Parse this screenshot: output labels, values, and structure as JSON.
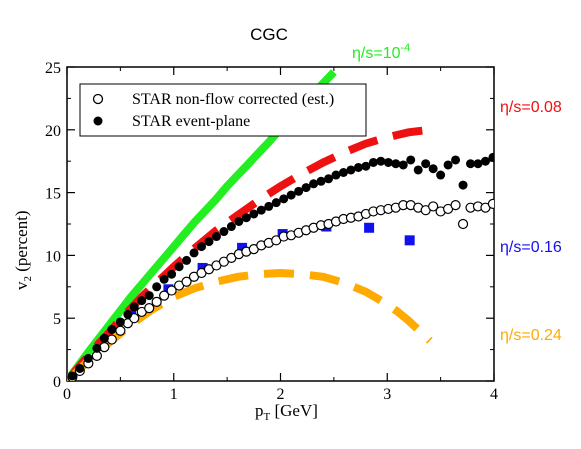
{
  "chart_data": {
    "type": "scatter",
    "title": "CGC",
    "xlabel_main": "p",
    "xlabel_sub": "T",
    "xlabel_unit": " [GeV]",
    "ylabel_main": "v",
    "ylabel_sub": "2",
    "ylabel_unit": " (percent)",
    "xlim": [
      0,
      4
    ],
    "ylim": [
      0,
      25
    ],
    "xticks": [
      0,
      1,
      2,
      3,
      4
    ],
    "yticks": [
      0,
      5,
      10,
      15,
      20,
      25
    ],
    "legend_position": "top-left",
    "legend": [
      {
        "label": "STAR non-flow corrected (est.)",
        "marker": "open-circle"
      },
      {
        "label": "STAR event-plane",
        "marker": "filled-circle"
      }
    ],
    "series": [
      {
        "name": "STAR non-flow corrected (est.)",
        "style": "open-circle",
        "color": "#000000",
        "x": [
          0.05,
          0.12,
          0.2,
          0.28,
          0.35,
          0.42,
          0.5,
          0.57,
          0.63,
          0.7,
          0.77,
          0.84,
          0.91,
          0.98,
          1.05,
          1.12,
          1.19,
          1.26,
          1.33,
          1.4,
          1.47,
          1.54,
          1.61,
          1.68,
          1.75,
          1.82,
          1.89,
          1.96,
          2.03,
          2.1,
          2.17,
          2.24,
          2.31,
          2.38,
          2.45,
          2.52,
          2.59,
          2.66,
          2.73,
          2.8,
          2.87,
          2.94,
          3.01,
          3.08,
          3.15,
          3.22,
          3.29,
          3.36,
          3.43,
          3.5,
          3.57,
          3.64,
          3.71,
          3.78,
          3.85,
          3.92,
          3.99
        ],
        "y": [
          0.3,
          0.8,
          1.4,
          2.0,
          2.7,
          3.3,
          4.0,
          4.6,
          5.0,
          5.5,
          5.8,
          6.3,
          6.8,
          7.2,
          7.6,
          7.9,
          8.3,
          8.6,
          8.9,
          9.2,
          9.5,
          9.8,
          10.1,
          10.3,
          10.5,
          10.8,
          11.0,
          11.2,
          11.5,
          11.6,
          11.8,
          12.0,
          12.2,
          12.4,
          12.5,
          12.7,
          12.9,
          13.0,
          13.1,
          13.3,
          13.5,
          13.6,
          13.7,
          13.8,
          14.0,
          14.0,
          13.8,
          13.6,
          13.9,
          13.5,
          13.7,
          14.0,
          12.5,
          13.8,
          13.9,
          13.8,
          14.1
        ]
      },
      {
        "name": "STAR event-plane",
        "style": "filled-circle",
        "color": "#000000",
        "x": [
          0.05,
          0.12,
          0.2,
          0.28,
          0.35,
          0.42,
          0.5,
          0.57,
          0.63,
          0.7,
          0.77,
          0.84,
          0.91,
          0.98,
          1.05,
          1.12,
          1.19,
          1.26,
          1.33,
          1.4,
          1.47,
          1.54,
          1.61,
          1.68,
          1.75,
          1.82,
          1.89,
          1.96,
          2.03,
          2.1,
          2.17,
          2.24,
          2.31,
          2.38,
          2.45,
          2.52,
          2.59,
          2.66,
          2.73,
          2.8,
          2.87,
          2.94,
          3.01,
          3.08,
          3.15,
          3.22,
          3.29,
          3.36,
          3.43,
          3.5,
          3.57,
          3.64,
          3.71,
          3.78,
          3.85,
          3.92,
          3.99
        ],
        "y": [
          0.4,
          1.0,
          1.8,
          2.6,
          3.4,
          4.1,
          4.7,
          5.3,
          5.9,
          6.4,
          6.8,
          7.5,
          8.1,
          8.5,
          9.1,
          9.6,
          10.2,
          10.7,
          11.1,
          11.5,
          11.9,
          12.3,
          12.7,
          13.0,
          13.3,
          13.6,
          13.9,
          14.2,
          14.5,
          14.8,
          15.1,
          15.4,
          15.7,
          15.9,
          16.1,
          16.4,
          16.6,
          16.8,
          17.0,
          17.1,
          17.4,
          17.5,
          17.4,
          17.3,
          17.2,
          17.6,
          16.8,
          17.3,
          16.9,
          16.4,
          17.2,
          17.6,
          15.6,
          17.3,
          17.3,
          17.5,
          17.8
        ]
      },
      {
        "name": "η/s=10^-4",
        "style": "line-solid",
        "color": "#22ee22",
        "x": [
          0.0,
          0.1,
          0.2,
          0.3,
          0.4,
          0.5,
          0.6,
          0.7,
          0.8,
          0.9,
          1.0,
          1.1,
          1.2,
          1.3,
          1.4,
          1.5,
          1.6,
          1.7,
          1.8,
          1.9,
          2.0,
          2.1,
          2.2,
          2.3,
          2.4,
          2.5
        ],
        "y": [
          0.0,
          1.15,
          2.3,
          3.4,
          4.5,
          5.6,
          6.7,
          7.7,
          8.7,
          9.7,
          10.7,
          11.7,
          12.7,
          13.6,
          14.5,
          15.5,
          16.4,
          17.3,
          18.2,
          19.1,
          20.1,
          21.0,
          21.9,
          22.8,
          23.7,
          24.6
        ]
      },
      {
        "name": "η/s=0.08",
        "style": "line-dashed",
        "color": "#ee1111",
        "x": [
          0.0,
          0.1,
          0.2,
          0.3,
          0.4,
          0.5,
          0.6,
          0.7,
          0.8,
          0.9,
          1.0,
          1.2,
          1.4,
          1.6,
          1.8,
          2.0,
          2.2,
          2.4,
          2.6,
          2.8,
          3.0,
          3.2,
          3.4
        ],
        "y": [
          0.0,
          1.0,
          2.0,
          3.0,
          3.9,
          4.9,
          5.8,
          6.7,
          7.5,
          8.3,
          9.1,
          10.6,
          12.0,
          13.2,
          14.4,
          15.5,
          16.5,
          17.4,
          18.2,
          18.9,
          19.4,
          19.8,
          20.0
        ]
      },
      {
        "name": "η/s=0.16",
        "style": "square-markers",
        "color": "#1111ee",
        "x": [
          0.6,
          0.95,
          1.27,
          1.64,
          2.02,
          2.43,
          2.83,
          3.21
        ],
        "y": [
          5.2,
          7.3,
          9.0,
          10.6,
          11.7,
          12.3,
          12.2,
          11.2
        ]
      },
      {
        "name": "η/s=0.24",
        "style": "line-dashed",
        "color": "#ffaa00",
        "x": [
          0.0,
          0.1,
          0.2,
          0.3,
          0.4,
          0.5,
          0.6,
          0.7,
          0.8,
          0.9,
          1.0,
          1.2,
          1.4,
          1.6,
          1.8,
          2.0,
          2.2,
          2.4,
          2.6,
          2.8,
          3.0,
          3.1,
          3.2,
          3.3,
          3.4
        ],
        "y": [
          0.0,
          0.8,
          1.6,
          2.4,
          3.1,
          3.8,
          4.5,
          5.1,
          5.7,
          6.2,
          6.7,
          7.4,
          7.9,
          8.3,
          8.5,
          8.6,
          8.5,
          8.3,
          7.8,
          7.1,
          6.1,
          5.5,
          4.8,
          4.0,
          3.2
        ]
      }
    ],
    "annotations": [
      {
        "text_main": "η/s=10",
        "text_sup": "-4",
        "color": "#22ee22"
      },
      {
        "text_main": "η/s=0.08",
        "color": "#ee1111"
      },
      {
        "text_main": "η/s=0.16",
        "color": "#1111ee"
      },
      {
        "text_main": "η/s=0.24",
        "color": "#ffaa00"
      }
    ]
  }
}
